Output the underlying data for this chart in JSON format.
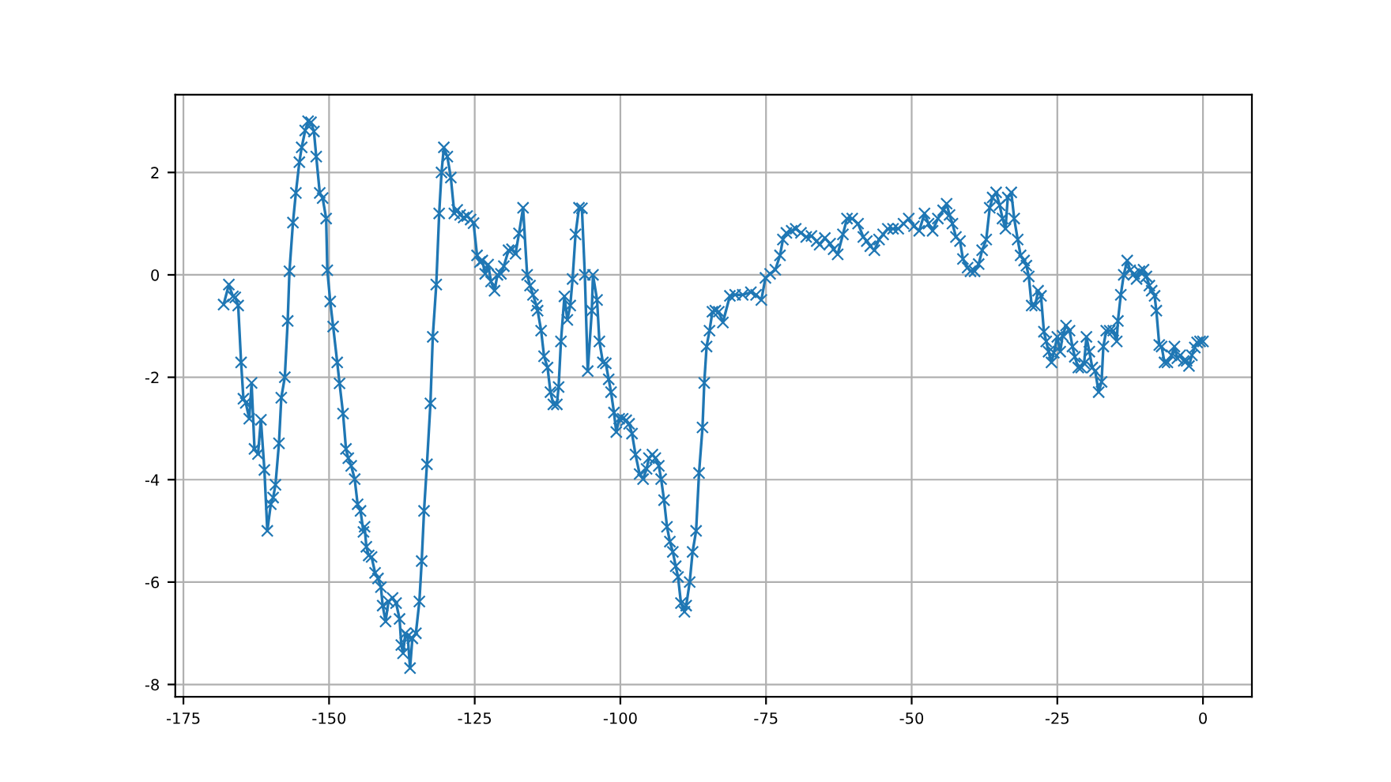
{
  "chart_data": {
    "type": "line",
    "xlim": [
      -176.4,
      8.4
    ],
    "ylim": [
      -8.24,
      3.52
    ],
    "xticks": [
      -175,
      -150,
      -125,
      -100,
      -75,
      -50,
      -25,
      0
    ],
    "yticks": [
      -8,
      -6,
      -4,
      -2,
      0,
      2
    ],
    "grid": true,
    "marker": "cross",
    "line_style": "solid",
    "series": [
      {
        "color": "#1f77b4",
        "x": [
          -168.1,
          -167.2,
          -166.5,
          -166.1,
          -165.6,
          -165.1,
          -164.7,
          -164.3,
          -163.7,
          -163.3,
          -162.8,
          -162.2,
          -161.7,
          -161.1,
          -160.6,
          -160.0,
          -159.6,
          -159.2,
          -158.6,
          -158.2,
          -157.6,
          -157.1,
          -156.8,
          -156.2,
          -155.7,
          -155.1,
          -154.7,
          -154.1,
          -153.6,
          -153.1,
          -152.6,
          -152.2,
          -151.6,
          -151.1,
          -150.5,
          -150.3,
          -149.8,
          -149.3,
          -148.6,
          -148.2,
          -147.6,
          -147.1,
          -146.7,
          -146.2,
          -145.6,
          -145.1,
          -144.6,
          -144.1,
          -143.9,
          -143.6,
          -143.2,
          -142.7,
          -142.1,
          -141.6,
          -141.1,
          -140.8,
          -140.3,
          -139.8,
          -139.1,
          -138.5,
          -137.9,
          -137.6,
          -137.3,
          -136.9,
          -136.5,
          -136.1,
          -135.7,
          -135.1,
          -134.5,
          -134.1,
          -133.7,
          -133.2,
          -132.6,
          -132.2,
          -131.6,
          -131.1,
          -130.7,
          -130.3,
          -129.7,
          -129.1,
          -128.5,
          -128.0,
          -127.5,
          -126.9,
          -126.3,
          -125.7,
          -125.2,
          -124.6,
          -124.1,
          -123.7,
          -123.2,
          -122.7,
          -122.2,
          -121.6,
          -121.1,
          -120.5,
          -120.0,
          -119.2,
          -118.6,
          -118.0,
          -117.4,
          -116.7,
          -116.0,
          -115.5,
          -115.0,
          -114.4,
          -114.2,
          -113.6,
          -113.1,
          -112.5,
          -112.0,
          -111.5,
          -110.9,
          -110.6,
          -110.2,
          -109.6,
          -109.1,
          -108.6,
          -108.2,
          -107.7,
          -107.1,
          -106.6,
          -106.1,
          -105.6,
          -104.9,
          -104.7,
          -104.0,
          -103.6,
          -103.0,
          -102.5,
          -102.0,
          -101.6,
          -101.1,
          -100.7,
          -100.2,
          -99.6,
          -99.0,
          -98.5,
          -98.0,
          -97.4,
          -96.7,
          -96.1,
          -95.5,
          -95.1,
          -94.5,
          -94.0,
          -93.4,
          -93.0,
          -92.5,
          -92.0,
          -91.5,
          -91.0,
          -90.5,
          -90.1,
          -89.6,
          -89.0,
          -88.7,
          -88.1,
          -87.6,
          -87.0,
          -86.5,
          -85.9,
          -85.6,
          -85.2,
          -84.7,
          -84.2,
          -83.7,
          -83.1,
          -82.4,
          -81.2,
          -80.3,
          -79.0,
          -77.6,
          -76.7,
          -75.8,
          -75.1,
          -74.3,
          -73.4,
          -72.6,
          -72.1,
          -71.5,
          -70.6,
          -69.9,
          -69.0,
          -68.1,
          -67.2,
          -66.3,
          -65.8,
          -64.9,
          -64.0,
          -63.4,
          -62.7,
          -61.8,
          -61.1,
          -60.2,
          -59.2,
          -58.3,
          -57.7,
          -57.1,
          -56.4,
          -55.6,
          -54.9,
          -54.1,
          -53.2,
          -52.3,
          -51.4,
          -50.5,
          -49.6,
          -48.7,
          -47.8,
          -47.1,
          -46.4,
          -45.5,
          -44.6,
          -44.0,
          -43.5,
          -43.0,
          -42.4,
          -41.7,
          -41.2,
          -40.4,
          -39.9,
          -39.2,
          -38.5,
          -37.9,
          -37.2,
          -36.6,
          -36.1,
          -35.5,
          -34.9,
          -34.4,
          -33.9,
          -33.5,
          -32.9,
          -32.4,
          -31.8,
          -31.3,
          -30.7,
          -30.3,
          -29.9,
          -29.4,
          -28.8,
          -28.3,
          -27.8,
          -27.3,
          -26.9,
          -26.5,
          -26.0,
          -25.6,
          -25.0,
          -24.5,
          -24.1,
          -23.5,
          -22.9,
          -22.4,
          -22.0,
          -21.4,
          -20.9,
          -20.4,
          -20.0,
          -19.5,
          -19.0,
          -18.5,
          -17.9,
          -17.4,
          -17.1,
          -16.6,
          -16.0,
          -15.4,
          -14.8,
          -14.6,
          -14.1,
          -13.6,
          -13.0,
          -12.5,
          -11.8,
          -11.4,
          -10.9,
          -10.2,
          -9.7,
          -9.2,
          -8.8,
          -8.3,
          -8.0,
          -7.5,
          -7.1,
          -6.6,
          -6.1,
          -5.4,
          -4.9,
          -4.4,
          -3.9,
          -3.3,
          -2.8,
          -2.4,
          -1.9,
          -1.4,
          -1.0,
          -0.5,
          0.0
        ],
        "values": [
          -0.58,
          -0.19,
          -0.42,
          -0.44,
          -0.6,
          -1.71,
          -2.42,
          -2.5,
          -2.81,
          -2.11,
          -3.4,
          -3.5,
          -2.83,
          -3.81,
          -5.0,
          -4.48,
          -4.35,
          -4.1,
          -3.29,
          -2.4,
          -2.0,
          -0.9,
          0.07,
          1.02,
          1.6,
          2.2,
          2.49,
          2.82,
          3.0,
          2.98,
          2.8,
          2.31,
          1.6,
          1.5,
          1.1,
          0.09,
          -0.52,
          -1.01,
          -1.71,
          -2.12,
          -2.71,
          -3.4,
          -3.58,
          -3.73,
          -3.99,
          -4.48,
          -4.61,
          -5.02,
          -4.92,
          -5.31,
          -5.48,
          -5.51,
          -5.82,
          -5.93,
          -6.1,
          -6.46,
          -6.77,
          -6.38,
          -6.31,
          -6.41,
          -6.72,
          -7.23,
          -7.39,
          -7.0,
          -7.06,
          -7.68,
          -7.1,
          -7.0,
          -6.38,
          -5.59,
          -4.61,
          -3.7,
          -2.51,
          -1.21,
          -0.19,
          1.2,
          2.0,
          2.49,
          2.31,
          1.9,
          1.2,
          1.27,
          1.17,
          1.12,
          1.15,
          1.08,
          1.01,
          0.38,
          0.25,
          0.28,
          0.02,
          0.2,
          -0.13,
          -0.31,
          0.0,
          0.02,
          0.17,
          0.48,
          0.5,
          0.41,
          0.81,
          1.31,
          0.0,
          -0.21,
          -0.39,
          -0.6,
          -0.7,
          -1.09,
          -1.59,
          -1.81,
          -2.29,
          -2.53,
          -2.53,
          -2.19,
          -1.3,
          -0.42,
          -0.88,
          -0.6,
          -0.08,
          0.79,
          1.31,
          1.3,
          0.0,
          -1.88,
          -0.7,
          0.0,
          -0.49,
          -1.3,
          -1.71,
          -1.73,
          -2.04,
          -2.29,
          -2.69,
          -3.07,
          -2.81,
          -2.81,
          -2.84,
          -2.91,
          -3.1,
          -3.51,
          -3.89,
          -3.99,
          -3.79,
          -3.58,
          -3.51,
          -3.58,
          -3.73,
          -3.99,
          -4.4,
          -4.92,
          -5.21,
          -5.41,
          -5.69,
          -5.9,
          -6.41,
          -6.58,
          -6.46,
          -6.0,
          -5.41,
          -5.0,
          -3.87,
          -2.98,
          -2.11,
          -1.4,
          -1.09,
          -0.72,
          -0.7,
          -0.72,
          -0.93,
          -0.41,
          -0.39,
          -0.39,
          -0.34,
          -0.39,
          -0.49,
          -0.06,
          0.02,
          0.1,
          0.38,
          0.69,
          0.82,
          0.86,
          0.9,
          0.82,
          0.74,
          0.76,
          0.66,
          0.59,
          0.72,
          0.61,
          0.5,
          0.4,
          0.79,
          1.1,
          1.1,
          1.0,
          0.74,
          0.66,
          0.56,
          0.48,
          0.69,
          0.79,
          0.9,
          0.9,
          0.9,
          1.0,
          1.1,
          0.95,
          0.86,
          1.2,
          1.0,
          0.86,
          1.1,
          1.26,
          1.39,
          1.17,
          1.0,
          0.74,
          0.66,
          0.31,
          0.14,
          0.07,
          0.07,
          0.21,
          0.48,
          0.69,
          1.31,
          1.51,
          1.61,
          1.36,
          1.1,
          0.9,
          1.51,
          1.61,
          1.1,
          0.69,
          0.38,
          0.28,
          0.18,
          -0.03,
          -0.6,
          -0.6,
          -0.31,
          -0.41,
          -1.11,
          -1.3,
          -1.5,
          -1.71,
          -1.52,
          -1.21,
          -1.5,
          -1.19,
          -0.99,
          -1.09,
          -1.4,
          -1.6,
          -1.81,
          -1.81,
          -1.73,
          -1.21,
          -1.5,
          -1.81,
          -1.88,
          -2.29,
          -2.09,
          -1.4,
          -1.09,
          -1.09,
          -1.09,
          -1.3,
          -0.9,
          -0.39,
          0.0,
          0.28,
          0.09,
          0.02,
          -0.08,
          0.07,
          0.1,
          -0.03,
          -0.21,
          -0.31,
          -0.41,
          -0.7,
          -1.37,
          -1.4,
          -1.71,
          -1.71,
          -1.57,
          -1.4,
          -1.63,
          -1.57,
          -1.68,
          -1.68,
          -1.78,
          -1.57,
          -1.42,
          -1.32,
          -1.3,
          -1.3
        ]
      }
    ]
  }
}
